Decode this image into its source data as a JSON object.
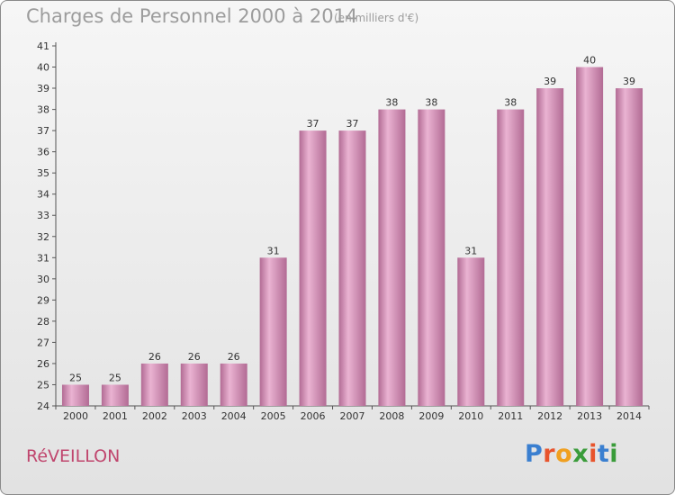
{
  "header": {
    "title": "Charges de Personnel 2000 à 2014",
    "subtitle": "(en milliers d'€)"
  },
  "footer": {
    "commune": "RéVEILLON",
    "logo": "Proxiti"
  },
  "colors": {
    "bar": "#d696b9",
    "bar_light": "#eab3d2",
    "bar_dark": "#b26b94",
    "title": "#9c9c9c",
    "commune": "#c0466e"
  },
  "chart_data": {
    "type": "bar",
    "title": "Charges de Personnel 2000 à 2014",
    "subtitle": "(en milliers d'€)",
    "xlabel": "",
    "ylabel": "",
    "ylim": [
      24,
      41
    ],
    "yticks": [
      24,
      25,
      26,
      27,
      28,
      29,
      30,
      31,
      32,
      33,
      34,
      35,
      36,
      37,
      38,
      39,
      40,
      41
    ],
    "grid": false,
    "categories": [
      "2000",
      "2001",
      "2002",
      "2003",
      "2004",
      "2005",
      "2006",
      "2007",
      "2008",
      "2009",
      "2010",
      "2011",
      "2012",
      "2013",
      "2014"
    ],
    "values": [
      25,
      25,
      26,
      26,
      26,
      31,
      37,
      37,
      38,
      38,
      31,
      38,
      39,
      40,
      39
    ]
  }
}
